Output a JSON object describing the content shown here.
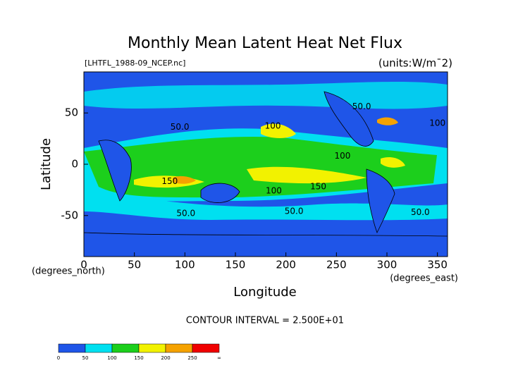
{
  "chart_data": {
    "type": "contour",
    "title": "Monthly Mean Latent Heat Net Flux",
    "source_label": "[LHTFL_1988-09_NCEP.nc]",
    "units_label": "(units:W/m¯2)",
    "xlabel": "Longitude",
    "ylabel": "Latitude",
    "x_unit_label": "(degrees_east)",
    "y_unit_label": "(degrees_north)",
    "xlim": [
      0,
      360
    ],
    "xticks": [
      0,
      50,
      100,
      150,
      200,
      250,
      300,
      350
    ],
    "ylim": [
      -90,
      90
    ],
    "yticks": [
      -50,
      0,
      50
    ],
    "footer": "CONTOUR INTERVAL = 2.500E+01",
    "contour_labels": [
      {
        "text": "50.0",
        "x": 95,
        "y": 36
      },
      {
        "text": "100",
        "x": 187,
        "y": 37
      },
      {
        "text": "50.0",
        "x": 275,
        "y": 56
      },
      {
        "text": "100",
        "x": 350,
        "y": 40
      },
      {
        "text": "100",
        "x": 256,
        "y": 8
      },
      {
        "text": "150",
        "x": 85,
        "y": -17
      },
      {
        "text": "100",
        "x": 188,
        "y": -26
      },
      {
        "text": "150",
        "x": 232,
        "y": -22
      },
      {
        "text": "50.0",
        "x": 101,
        "y": -48
      },
      {
        "text": "50.0",
        "x": 208,
        "y": -46
      },
      {
        "text": "50.0",
        "x": 333,
        "y": -47
      }
    ],
    "colorbar": {
      "bins": [
        0,
        50,
        100,
        150,
        200,
        250
      ],
      "top_label": "∞",
      "colors": [
        "#1f55e8",
        "#00e0f0",
        "#1ccf1c",
        "#f2f200",
        "#f5a200",
        "#f00000"
      ]
    }
  }
}
